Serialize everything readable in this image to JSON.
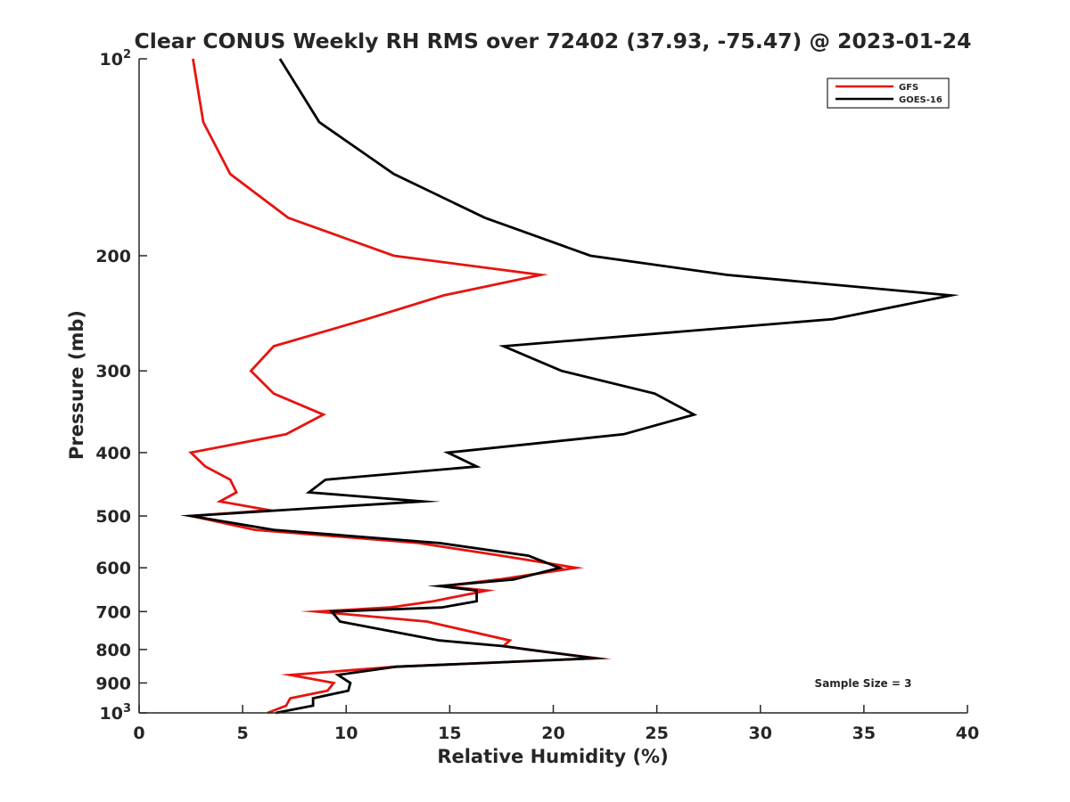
{
  "chart_data": {
    "type": "line",
    "title": "Clear CONUS Weekly RH RMS over 72402 (37.93, -75.47) @ 2023-01-24",
    "xlabel": "Relative Humidity (%)",
    "ylabel": "Pressure (mb)",
    "xlim": [
      0,
      40
    ],
    "ylim": [
      100,
      1000
    ],
    "yscale": "log",
    "y_reversed": true,
    "legend_position": "top-right",
    "annotation": "Sample Size = 3",
    "x_ticks": [
      {
        "value": 0,
        "label": "0"
      },
      {
        "value": 5,
        "label": "5"
      },
      {
        "value": 10,
        "label": "10"
      },
      {
        "value": 15,
        "label": "15"
      },
      {
        "value": 20,
        "label": "20"
      },
      {
        "value": 25,
        "label": "25"
      },
      {
        "value": 30,
        "label": "30"
      },
      {
        "value": 35,
        "label": "35"
      },
      {
        "value": 40,
        "label": "40"
      }
    ],
    "y_ticks": [
      {
        "value": 100,
        "base": "10",
        "exp": "2"
      },
      {
        "value": 200,
        "label": "200"
      },
      {
        "value": 300,
        "label": "300"
      },
      {
        "value": 400,
        "label": "400"
      },
      {
        "value": 500,
        "label": "500"
      },
      {
        "value": 600,
        "label": "600"
      },
      {
        "value": 700,
        "label": "700"
      },
      {
        "value": 800,
        "label": "800"
      },
      {
        "value": 900,
        "label": "900"
      },
      {
        "value": 1000,
        "base": "10",
        "exp": "3"
      }
    ],
    "series": [
      {
        "name": "GFS",
        "color": "#e6140f",
        "points": [
          [
            2.6,
            100
          ],
          [
            3.1,
            125
          ],
          [
            4.4,
            150
          ],
          [
            7.2,
            175
          ],
          [
            12.3,
            200
          ],
          [
            19.4,
            214
          ],
          [
            14.7,
            230
          ],
          [
            11.0,
            250
          ],
          [
            6.5,
            275
          ],
          [
            5.4,
            300
          ],
          [
            6.5,
            325
          ],
          [
            8.9,
            350
          ],
          [
            7.1,
            375
          ],
          [
            2.5,
            400
          ],
          [
            3.2,
            420
          ],
          [
            4.4,
            440
          ],
          [
            4.7,
            460
          ],
          [
            3.9,
            475
          ],
          [
            6.3,
            490
          ],
          [
            2.5,
            500
          ],
          [
            5.6,
            525
          ],
          [
            13.5,
            550
          ],
          [
            17.5,
            575
          ],
          [
            21.1,
            600
          ],
          [
            17.4,
            625
          ],
          [
            14.7,
            640
          ],
          [
            16.8,
            650
          ],
          [
            14.2,
            675
          ],
          [
            12.1,
            690
          ],
          [
            8.6,
            700
          ],
          [
            13.9,
            725
          ],
          [
            17.9,
            775
          ],
          [
            17.6,
            790
          ],
          [
            18.7,
            800
          ],
          [
            22.1,
            825
          ],
          [
            12.4,
            850
          ],
          [
            7.3,
            875
          ],
          [
            9.4,
            900
          ],
          [
            9.1,
            925
          ],
          [
            7.3,
            950
          ],
          [
            7.1,
            975
          ],
          [
            6.2,
            1000
          ]
        ]
      },
      {
        "name": "GOES-16",
        "color": "#000000",
        "points": [
          [
            6.8,
            100
          ],
          [
            8.7,
            125
          ],
          [
            12.3,
            150
          ],
          [
            16.7,
            175
          ],
          [
            21.8,
            200
          ],
          [
            28.4,
            214
          ],
          [
            39.2,
            230
          ],
          [
            33.5,
            250
          ],
          [
            17.6,
            275
          ],
          [
            20.4,
            300
          ],
          [
            24.9,
            325
          ],
          [
            26.8,
            350
          ],
          [
            23.4,
            375
          ],
          [
            14.9,
            400
          ],
          [
            16.3,
            420
          ],
          [
            9.0,
            440
          ],
          [
            8.2,
            460
          ],
          [
            13.7,
            475
          ],
          [
            6.8,
            490
          ],
          [
            2.5,
            500
          ],
          [
            6.5,
            525
          ],
          [
            14.5,
            550
          ],
          [
            18.8,
            575
          ],
          [
            20.3,
            600
          ],
          [
            18.1,
            625
          ],
          [
            14.5,
            640
          ],
          [
            16.3,
            650
          ],
          [
            16.3,
            675
          ],
          [
            14.6,
            690
          ],
          [
            9.3,
            700
          ],
          [
            9.7,
            725
          ],
          [
            14.5,
            775
          ],
          [
            17.5,
            790
          ],
          [
            18.8,
            800
          ],
          [
            22.0,
            825
          ],
          [
            12.4,
            850
          ],
          [
            9.6,
            875
          ],
          [
            10.2,
            900
          ],
          [
            10.1,
            925
          ],
          [
            8.4,
            950
          ],
          [
            8.4,
            975
          ],
          [
            6.6,
            1000
          ]
        ]
      }
    ]
  }
}
